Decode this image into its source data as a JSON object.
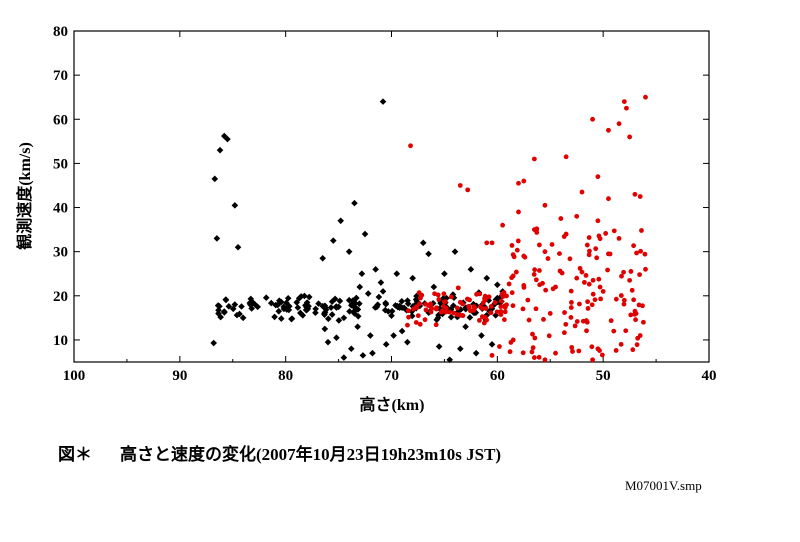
{
  "figure": {
    "caption_prefix": "図＊",
    "caption_text": "高さと速度の変化(2007年10月23日19h23m10s JST)",
    "filename": "M07001V.smp"
  },
  "chart_data": {
    "type": "scatter",
    "title": "",
    "xlabel": "高さ(km)",
    "ylabel": "観測速度(km/s)",
    "xlim": [
      100,
      40
    ],
    "ylim": [
      5,
      80
    ],
    "x_reversed": true,
    "xticks": [
      100,
      90,
      80,
      70,
      60,
      50,
      40
    ],
    "yticks": [
      10,
      20,
      30,
      40,
      50,
      60,
      70,
      80
    ],
    "grid": false,
    "series": [
      {
        "color": "#000000",
        "marker": "diamond",
        "points": [
          [
            86.7,
            46.5
          ],
          [
            86.5,
            33
          ],
          [
            86.2,
            53
          ],
          [
            85.8,
            56.2
          ],
          [
            85.5,
            55.5
          ],
          [
            84.8,
            40.5
          ],
          [
            84.5,
            31
          ],
          [
            86.8,
            9.3
          ],
          [
            70.8,
            64
          ],
          [
            73.5,
            41
          ],
          [
            74.8,
            37
          ],
          [
            72.5,
            34
          ],
          [
            75.5,
            32.5
          ],
          [
            74.0,
            30
          ],
          [
            76.5,
            28.5
          ],
          [
            71.5,
            26
          ],
          [
            72.8,
            25
          ],
          [
            69.5,
            25
          ],
          [
            68.0,
            24
          ],
          [
            67.0,
            32
          ],
          [
            66.5,
            29.5
          ],
          [
            64.0,
            30
          ],
          [
            73.0,
            22
          ],
          [
            71.0,
            23
          ],
          [
            74.5,
            15
          ],
          [
            73.2,
            13
          ],
          [
            72.0,
            11
          ],
          [
            75.2,
            10.5
          ],
          [
            73.8,
            8
          ],
          [
            71.8,
            7
          ],
          [
            74.5,
            6
          ],
          [
            72.7,
            6.5
          ],
          [
            70.5,
            9
          ],
          [
            69.0,
            12
          ],
          [
            68.5,
            9.5
          ],
          [
            70.0,
            15.5
          ],
          [
            69.3,
            17.5
          ],
          [
            76.3,
            12.5
          ],
          [
            74.0,
            19
          ],
          [
            71.3,
            18
          ],
          [
            66.0,
            22
          ],
          [
            64.5,
            5.5
          ],
          [
            65.5,
            8.5
          ],
          [
            63.5,
            8
          ],
          [
            62.0,
            7
          ],
          [
            60.5,
            9
          ],
          [
            61.5,
            11
          ],
          [
            63.0,
            13
          ],
          [
            76.0,
            9.5
          ],
          [
            75.0,
            17.5
          ],
          [
            73.5,
            16
          ],
          [
            72.2,
            20.5
          ],
          [
            70.8,
            21
          ],
          [
            69.8,
            11
          ],
          [
            62.5,
            26
          ],
          [
            61.0,
            24
          ],
          [
            60.0,
            22.5
          ],
          [
            59.5,
            21
          ],
          [
            65.0,
            25
          ]
        ],
        "band": {
          "x_from": 86.5,
          "x_to": 59.5,
          "y_center": 17.5,
          "y_spread": 3.5,
          "count": 180
        }
      },
      {
        "color": "#e00000",
        "marker": "circle",
        "points": [
          [
            68.2,
            54
          ],
          [
            63.5,
            45
          ],
          [
            62.8,
            44
          ],
          [
            56.5,
            51
          ],
          [
            53.5,
            51.5
          ],
          [
            51.0,
            60
          ],
          [
            48.0,
            64
          ],
          [
            47.8,
            62.5
          ],
          [
            46.0,
            65
          ],
          [
            48.5,
            59
          ],
          [
            47.5,
            56
          ],
          [
            49.5,
            57.5
          ],
          [
            57.5,
            46
          ],
          [
            58.0,
            45.5
          ],
          [
            50.5,
            47
          ],
          [
            52.0,
            43.5
          ],
          [
            55.5,
            40.5
          ],
          [
            47.0,
            43
          ],
          [
            46.5,
            42.5
          ],
          [
            49.5,
            42
          ],
          [
            58.0,
            39
          ],
          [
            54.0,
            37.5
          ],
          [
            52.5,
            38
          ],
          [
            50.5,
            37
          ],
          [
            59.5,
            36
          ],
          [
            56.5,
            35
          ],
          [
            53.5,
            34
          ],
          [
            48.5,
            33
          ],
          [
            51.5,
            31.5
          ],
          [
            55.5,
            30
          ],
          [
            57.5,
            29
          ],
          [
            49.5,
            29.5
          ],
          [
            60.5,
            32
          ],
          [
            61.0,
            32
          ],
          [
            46.0,
            26
          ],
          [
            47.5,
            23.5
          ],
          [
            52.5,
            24
          ],
          [
            54.5,
            22
          ],
          [
            56.0,
            22.5
          ],
          [
            58.5,
            24.5
          ],
          [
            50.0,
            21
          ],
          [
            48.0,
            19
          ],
          [
            53.0,
            18.5
          ],
          [
            55.0,
            16
          ],
          [
            57.0,
            14.5
          ],
          [
            51.5,
            14
          ],
          [
            49.0,
            12
          ],
          [
            46.5,
            11
          ],
          [
            48.3,
            9
          ],
          [
            50.5,
            8
          ],
          [
            52.3,
            7.5
          ],
          [
            54.5,
            7
          ],
          [
            56.5,
            6
          ],
          [
            55.5,
            5.5
          ],
          [
            51.0,
            5.5
          ],
          [
            47.2,
            7.8
          ],
          [
            46.2,
            14
          ],
          [
            58.5,
            10
          ],
          [
            59.8,
            8.5
          ],
          [
            60.5,
            6.5
          ]
        ],
        "band": {
          "x_from": 68.5,
          "x_to": 58.5,
          "y_center": 17.5,
          "y_spread": 4.5,
          "count": 90
        },
        "scatter_field": {
          "x_from": 59,
          "x_to": 46,
          "y_from": 6,
          "y_to": 36,
          "count": 110
        }
      }
    ]
  }
}
